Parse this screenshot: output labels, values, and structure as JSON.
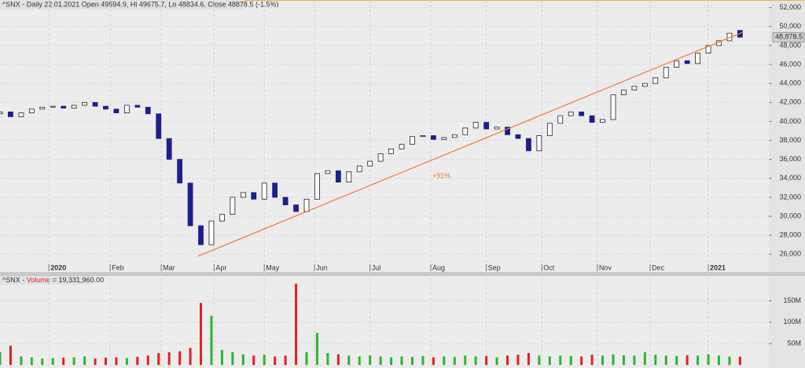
{
  "chart_data": [
    {
      "type": "candlestick",
      "title": "^SNX - Daily 22.01.2021 Open 49594.9, Hi 49675.7, Lo 48834.6, Close 48878.5 (-1.5%)",
      "x": [
        0,
        4,
        8,
        12,
        16,
        20,
        24,
        28,
        32,
        36,
        40,
        44,
        48,
        52,
        56,
        60,
        64,
        68,
        72,
        76,
        80,
        84,
        88,
        92,
        96,
        100,
        104,
        108,
        112,
        116,
        120,
        124,
        128,
        132,
        136,
        140,
        144,
        148,
        152,
        156,
        160,
        164,
        168,
        172,
        176,
        180,
        184,
        188,
        192,
        196,
        200,
        204,
        208,
        212,
        216,
        220,
        224,
        228,
        232,
        236,
        240,
        244,
        248,
        252,
        256,
        260,
        264,
        268,
        272,
        276,
        280
      ],
      "open": [
        40800,
        41000,
        40500,
        40900,
        41300,
        41500,
        41600,
        41400,
        41700,
        42000,
        41600,
        41300,
        40900,
        41700,
        41500,
        40800,
        38200,
        36000,
        33500,
        29000,
        27000,
        29500,
        30200,
        32000,
        32500,
        31800,
        33500,
        32000,
        31200,
        30500,
        31800,
        34500,
        34800,
        33600,
        34700,
        35300,
        35800,
        36600,
        37100,
        37600,
        38400,
        38500,
        38100,
        38300,
        38600,
        39300,
        39900,
        39200,
        39400,
        38600,
        38200,
        36900,
        38500,
        39800,
        40600,
        41000,
        40600,
        39900,
        40200,
        42800,
        43300,
        43700,
        44000,
        44600,
        45700,
        46400,
        46100,
        47200,
        48000,
        48500,
        49594.9
      ],
      "close": [
        41000,
        40500,
        40900,
        41300,
        41500,
        41600,
        41400,
        41700,
        42000,
        41600,
        41300,
        40900,
        41700,
        41500,
        40800,
        38200,
        36000,
        33500,
        29000,
        27000,
        29500,
        30200,
        32000,
        32500,
        31800,
        33500,
        32000,
        31200,
        30500,
        31800,
        34500,
        34800,
        33600,
        34700,
        35300,
        35800,
        36600,
        37100,
        37600,
        38400,
        38500,
        38100,
        38300,
        38600,
        39300,
        39900,
        39200,
        39400,
        38600,
        38200,
        36900,
        38500,
        39800,
        40600,
        41000,
        40600,
        39900,
        40200,
        42800,
        43300,
        43700,
        44000,
        44600,
        45700,
        46400,
        46100,
        47200,
        48000,
        48500,
        49300,
        48878.5
      ],
      "up_color": "#ffffff",
      "down_color": "#1c1f8a",
      "xlim": [
        0,
        290
      ],
      "xticks": [
        {
          "value": 18.5,
          "label": "2020"
        },
        {
          "value": 41.7,
          "label": "Feb"
        },
        {
          "value": 61,
          "label": "Mar"
        },
        {
          "value": 81,
          "label": "Apr"
        },
        {
          "value": 100,
          "label": "May"
        },
        {
          "value": 119,
          "label": "Jun"
        },
        {
          "value": 140,
          "label": "Jul"
        },
        {
          "value": 163,
          "label": "Aug"
        },
        {
          "value": 184,
          "label": "Sep"
        },
        {
          "value": 205,
          "label": "Oct"
        },
        {
          "value": 226,
          "label": "Nov"
        },
        {
          "value": 246,
          "label": "Dec"
        },
        {
          "value": 268,
          "label": "2021"
        }
      ],
      "ylim": [
        24200,
        52800
      ],
      "yticks": [
        {
          "value": 26000,
          "label": "26,000"
        },
        {
          "value": 28000,
          "label": "28,000"
        },
        {
          "value": 30000,
          "label": "30,000"
        },
        {
          "value": 32000,
          "label": "32,000"
        },
        {
          "value": 34000,
          "label": "34,000"
        },
        {
          "value": 36000,
          "label": "36,000"
        },
        {
          "value": 38000,
          "label": "38,000"
        },
        {
          "value": 40000,
          "label": "40,000"
        },
        {
          "value": 42000,
          "label": "42,000"
        },
        {
          "value": 44000,
          "label": "44,000"
        },
        {
          "value": 46000,
          "label": "46,000"
        },
        {
          "value": 48000,
          "label": "48,000"
        },
        {
          "value": 50000,
          "label": "50,000"
        },
        {
          "value": 52000,
          "label": "52,000"
        }
      ],
      "last_price": {
        "value": 48878.5,
        "label": "48,878.5"
      },
      "trendline": {
        "x": [
          75,
          281
        ],
        "y": [
          25800,
          49400
        ],
        "label": "+91%",
        "label_x": 167,
        "label_y": 34200,
        "color": "#f07a3a"
      },
      "grid": true
    },
    {
      "type": "volume",
      "title": "^SNX - ",
      "series_name": "Volume",
      "title_value": "= 19,331,960.00",
      "values": [
        30000000,
        45000000,
        20000000,
        18000000,
        15000000,
        16000000,
        17000000,
        18000000,
        20000000,
        15000000,
        17000000,
        18000000,
        16000000,
        19000000,
        22000000,
        28000000,
        30000000,
        32000000,
        40000000,
        145000000,
        115000000,
        35000000,
        30000000,
        25000000,
        22000000,
        24000000,
        20000000,
        22000000,
        190000000,
        30000000,
        75000000,
        28000000,
        25000000,
        22000000,
        20000000,
        22000000,
        20000000,
        18000000,
        20000000,
        19000000,
        21000000,
        18000000,
        20000000,
        19000000,
        22000000,
        20000000,
        21000000,
        18000000,
        22000000,
        24000000,
        28000000,
        22000000,
        20000000,
        22000000,
        21000000,
        20000000,
        24000000,
        22000000,
        25000000,
        23000000,
        22000000,
        30000000,
        24000000,
        22000000,
        21000000,
        23000000,
        22000000,
        25000000,
        22000000,
        20000000,
        19331960
      ],
      "up_color": "#2db52d",
      "down_color": "#e02020",
      "ylim": [
        -7000000,
        208000000
      ],
      "yticks": [
        {
          "value": 50000000,
          "label": "50M"
        },
        {
          "value": 100000000,
          "label": "100M"
        },
        {
          "value": 150000000,
          "label": "150M"
        }
      ]
    }
  ]
}
